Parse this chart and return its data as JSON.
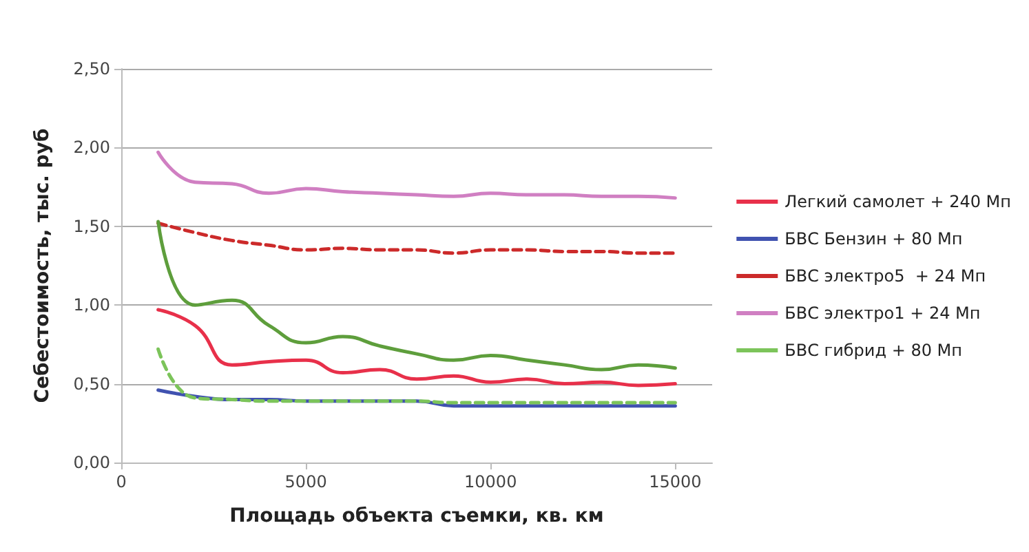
{
  "chart_data": {
    "type": "line",
    "xlabel": "Площадь объекта съемки, кв. км",
    "ylabel": "Себестоимость, тыс. руб",
    "x": [
      1000,
      2000,
      3000,
      4000,
      5000,
      6000,
      7000,
      8000,
      9000,
      10000,
      11000,
      12000,
      13000,
      14000,
      15000
    ],
    "xlim": [
      0,
      16000
    ],
    "xticks": [
      0,
      5000,
      10000,
      15000
    ],
    "ylim": [
      0,
      2.5
    ],
    "yticks": [
      {
        "value": 0,
        "label": "0,00"
      },
      {
        "value": 0.5,
        "label": "0,50"
      },
      {
        "value": 1,
        "label": "1,00"
      },
      {
        "value": 1.5,
        "label": "1,50"
      },
      {
        "value": 2,
        "label": "2,00"
      },
      {
        "value": 2.5,
        "label": "2,50"
      }
    ],
    "grid": "y",
    "legend": "right",
    "marker": "none",
    "series": [
      {
        "name": "Легкий самолет + 240 Мп",
        "color": "#e8304a",
        "line_style": "solid",
        "values": [
          0.97,
          0.87,
          0.62,
          0.64,
          0.65,
          0.57,
          0.59,
          0.53,
          0.55,
          0.51,
          0.53,
          0.5,
          0.51,
          0.49,
          0.5
        ]
      },
      {
        "name": "БВС Бензин + 80 Мп",
        "color": "#4052b0",
        "line_style": "solid",
        "values": [
          0.46,
          0.42,
          0.4,
          0.4,
          0.39,
          0.39,
          0.39,
          0.39,
          0.36,
          0.36,
          0.36,
          0.36,
          0.36,
          0.36,
          0.36
        ]
      },
      {
        "name": "БВС электро5  + 24 Мп",
        "color": "#cc2a2a",
        "line_style": "dashed",
        "values": [
          1.52,
          1.46,
          1.41,
          1.38,
          1.35,
          1.36,
          1.35,
          1.35,
          1.33,
          1.35,
          1.35,
          1.34,
          1.34,
          1.33,
          1.33
        ]
      },
      {
        "name": "БВС электро1 + 24 Мп",
        "color": "#d07fc2",
        "line_style": "solid",
        "values": [
          1.97,
          1.78,
          1.77,
          1.71,
          1.74,
          1.72,
          1.71,
          1.7,
          1.69,
          1.71,
          1.7,
          1.7,
          1.69,
          1.69,
          1.68
        ]
      },
      {
        "color": "#5e9e3c",
        "line_style": "solid",
        "values": [
          1.53,
          1.0,
          1.03,
          0.87,
          0.76,
          0.8,
          0.74,
          0.69,
          0.65,
          0.68,
          0.65,
          0.62,
          0.59,
          0.62,
          0.6
        ]
      },
      {
        "name": "БВС гибрид + 80 Мп",
        "color": "#7cc45a",
        "line_style": "dashed",
        "values": [
          0.72,
          0.41,
          0.4,
          0.39,
          0.39,
          0.39,
          0.39,
          0.39,
          0.38,
          0.38,
          0.38,
          0.38,
          0.38,
          0.38,
          0.38
        ]
      }
    ]
  }
}
